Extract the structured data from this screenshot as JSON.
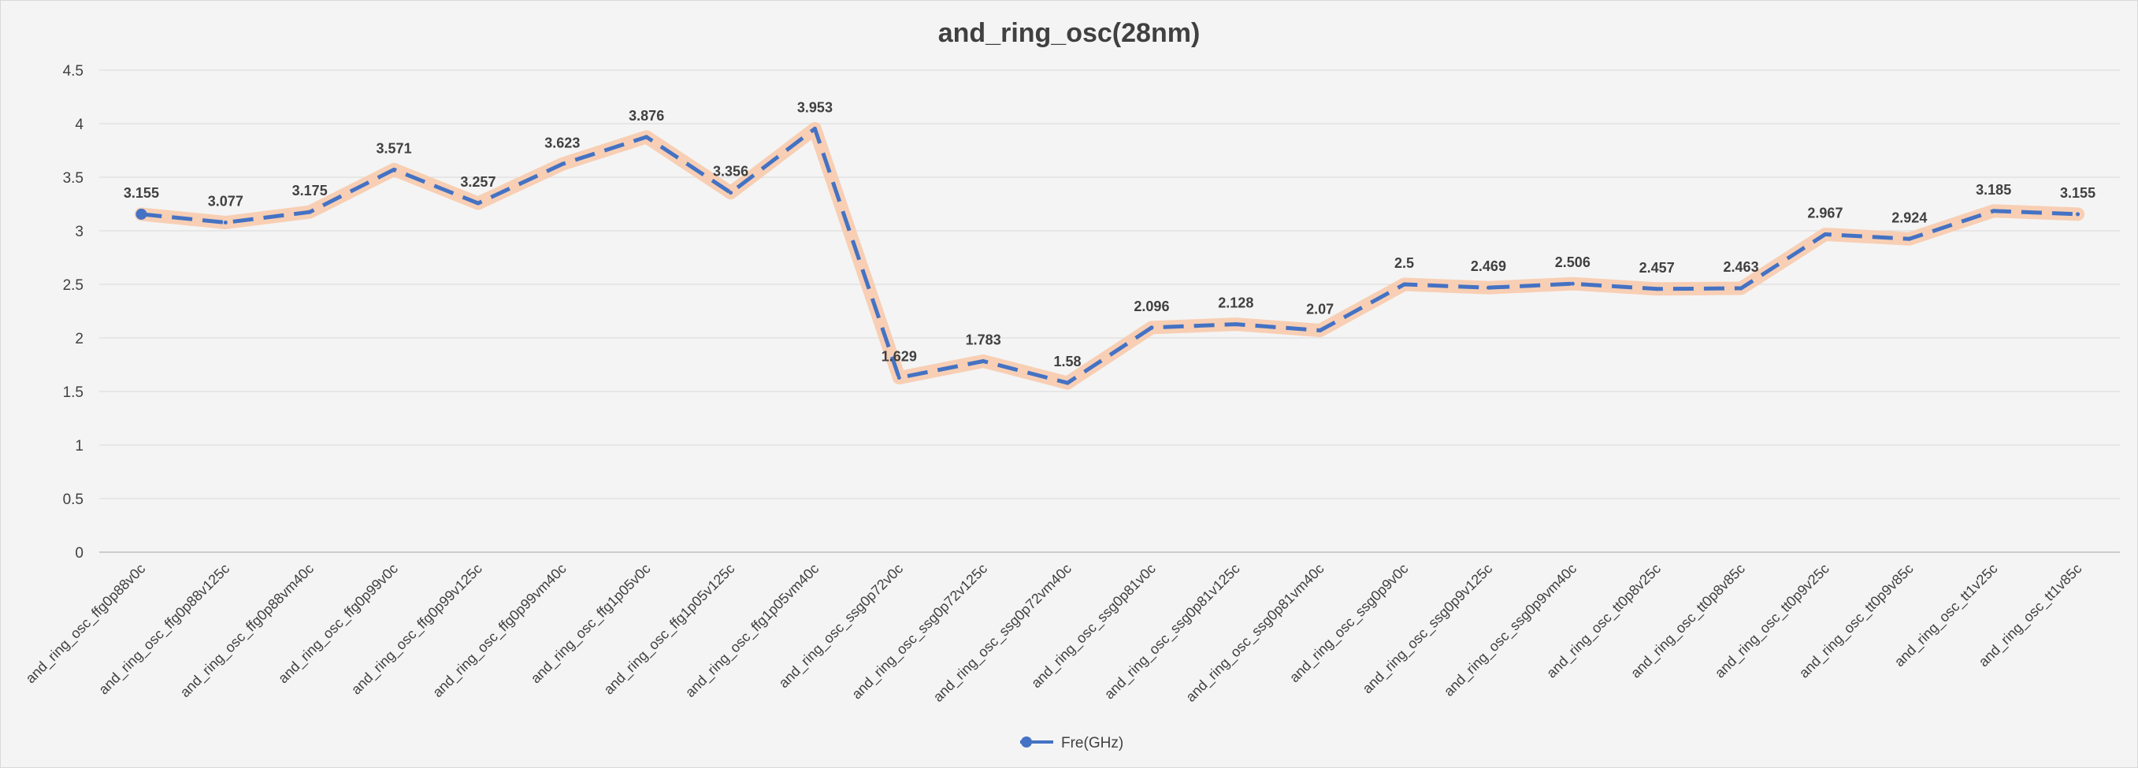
{
  "chart_data": {
    "type": "line",
    "title": "and_ring_osc(28nm)",
    "xlabel": "",
    "ylabel": "",
    "ylim": [
      0,
      4.5
    ],
    "y_ticks": [
      "0",
      "0.5",
      "1",
      "1.5",
      "2",
      "2.5",
      "3",
      "3.5",
      "4",
      "4.5"
    ],
    "grid": "horizontal",
    "legend_position": "bottom",
    "categories": [
      "and_ring_osc_ffg0p88v0c",
      "and_ring_osc_ffg0p88v125c",
      "and_ring_osc_ffg0p88vm40c",
      "and_ring_osc_ffg0p99v0c",
      "and_ring_osc_ffg0p99v125c",
      "and_ring_osc_ffg0p99vm40c",
      "and_ring_osc_ffg1p05v0c",
      "and_ring_osc_ffg1p05v125c",
      "and_ring_osc_ffg1p05vm40c",
      "and_ring_osc_ssg0p72v0c",
      "and_ring_osc_ssg0p72v125c",
      "and_ring_osc_ssg0p72vm40c",
      "and_ring_osc_ssg0p81v0c",
      "and_ring_osc_ssg0p81v125c",
      "and_ring_osc_ssg0p81vm40c",
      "and_ring_osc_ssg0p9v0c",
      "and_ring_osc_ssg0p9v125c",
      "and_ring_osc_ssg0p9vm40c",
      "and_ring_osc_tt0p8v25c",
      "and_ring_osc_tt0p8v85c",
      "and_ring_osc_tt0p9v25c",
      "and_ring_osc_tt0p9v85c",
      "and_ring_osc_tt1v25c",
      "and_ring_osc_tt1v85c"
    ],
    "series": [
      {
        "name": "Fre(GHz)",
        "values": [
          3.155,
          3.077,
          3.175,
          3.571,
          3.257,
          3.623,
          3.876,
          3.356,
          3.953,
          1.629,
          1.783,
          1.58,
          2.096,
          2.128,
          2.07,
          2.5,
          2.469,
          2.506,
          2.457,
          2.463,
          2.967,
          2.924,
          3.185,
          3.155
        ],
        "data_labels": [
          "3.155",
          "3.077",
          "3.175",
          "3.571",
          "3.257",
          "3.623",
          "3.876",
          "3.356",
          "3.953",
          "1.629",
          "1.783",
          "1.58",
          "2.096",
          "2.128",
          "2.07",
          "2.5",
          "2.469",
          "2.506",
          "2.457",
          "2.463",
          "2.967",
          "2.924",
          "3.185",
          "3.155"
        ],
        "line_color": "#4472c4",
        "glow_color": "#f8cbad",
        "marker_color": "#4472c4"
      }
    ],
    "highlights": {
      "max": {
        "index": 8,
        "color": "#70ad47"
      },
      "min": {
        "index": 11,
        "color": "#c00000"
      }
    },
    "colors": {
      "label_text": "#404040",
      "grid": "#d9d9d9",
      "axis": "#bfbfbf"
    }
  }
}
